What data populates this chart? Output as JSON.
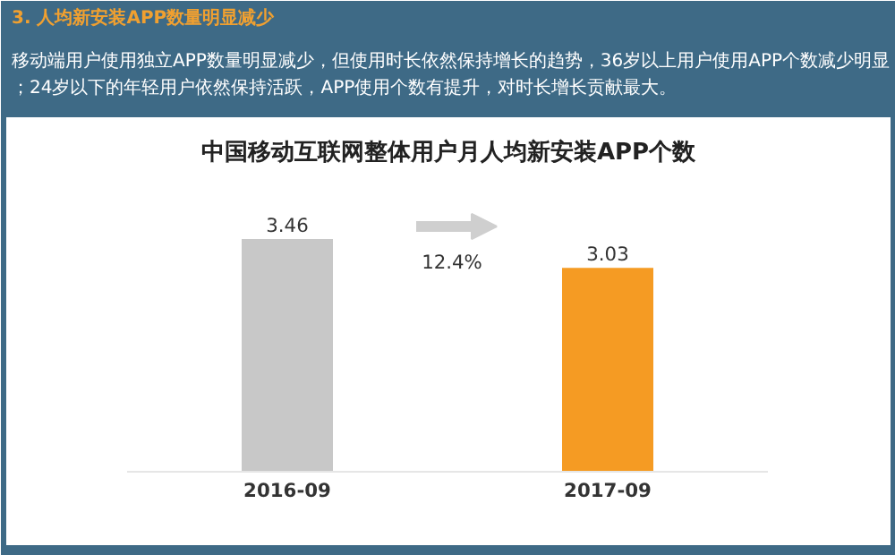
{
  "chart_data": {
    "type": "bar",
    "title": "中国移动互联网整体用户月人均新安装APP个数",
    "categories": [
      "2016-09",
      "2017-09"
    ],
    "values": [
      3.46,
      3.03
    ],
    "colors": [
      "#c8c8c8",
      "#f59b23"
    ],
    "data_labels": true,
    "annotations": [
      "3. 人均新安装APP数量明显减少",
      "移动端用户使用独立APP数量明显减少，但使用时长依然保持增长的趋势，36岁以上用户使用APP个数减少明显；24岁以下的年轻用户依然保持活跃，APP使用个数有提升，对时长增长贡献最大。",
      "12.4%"
    ]
  }
}
